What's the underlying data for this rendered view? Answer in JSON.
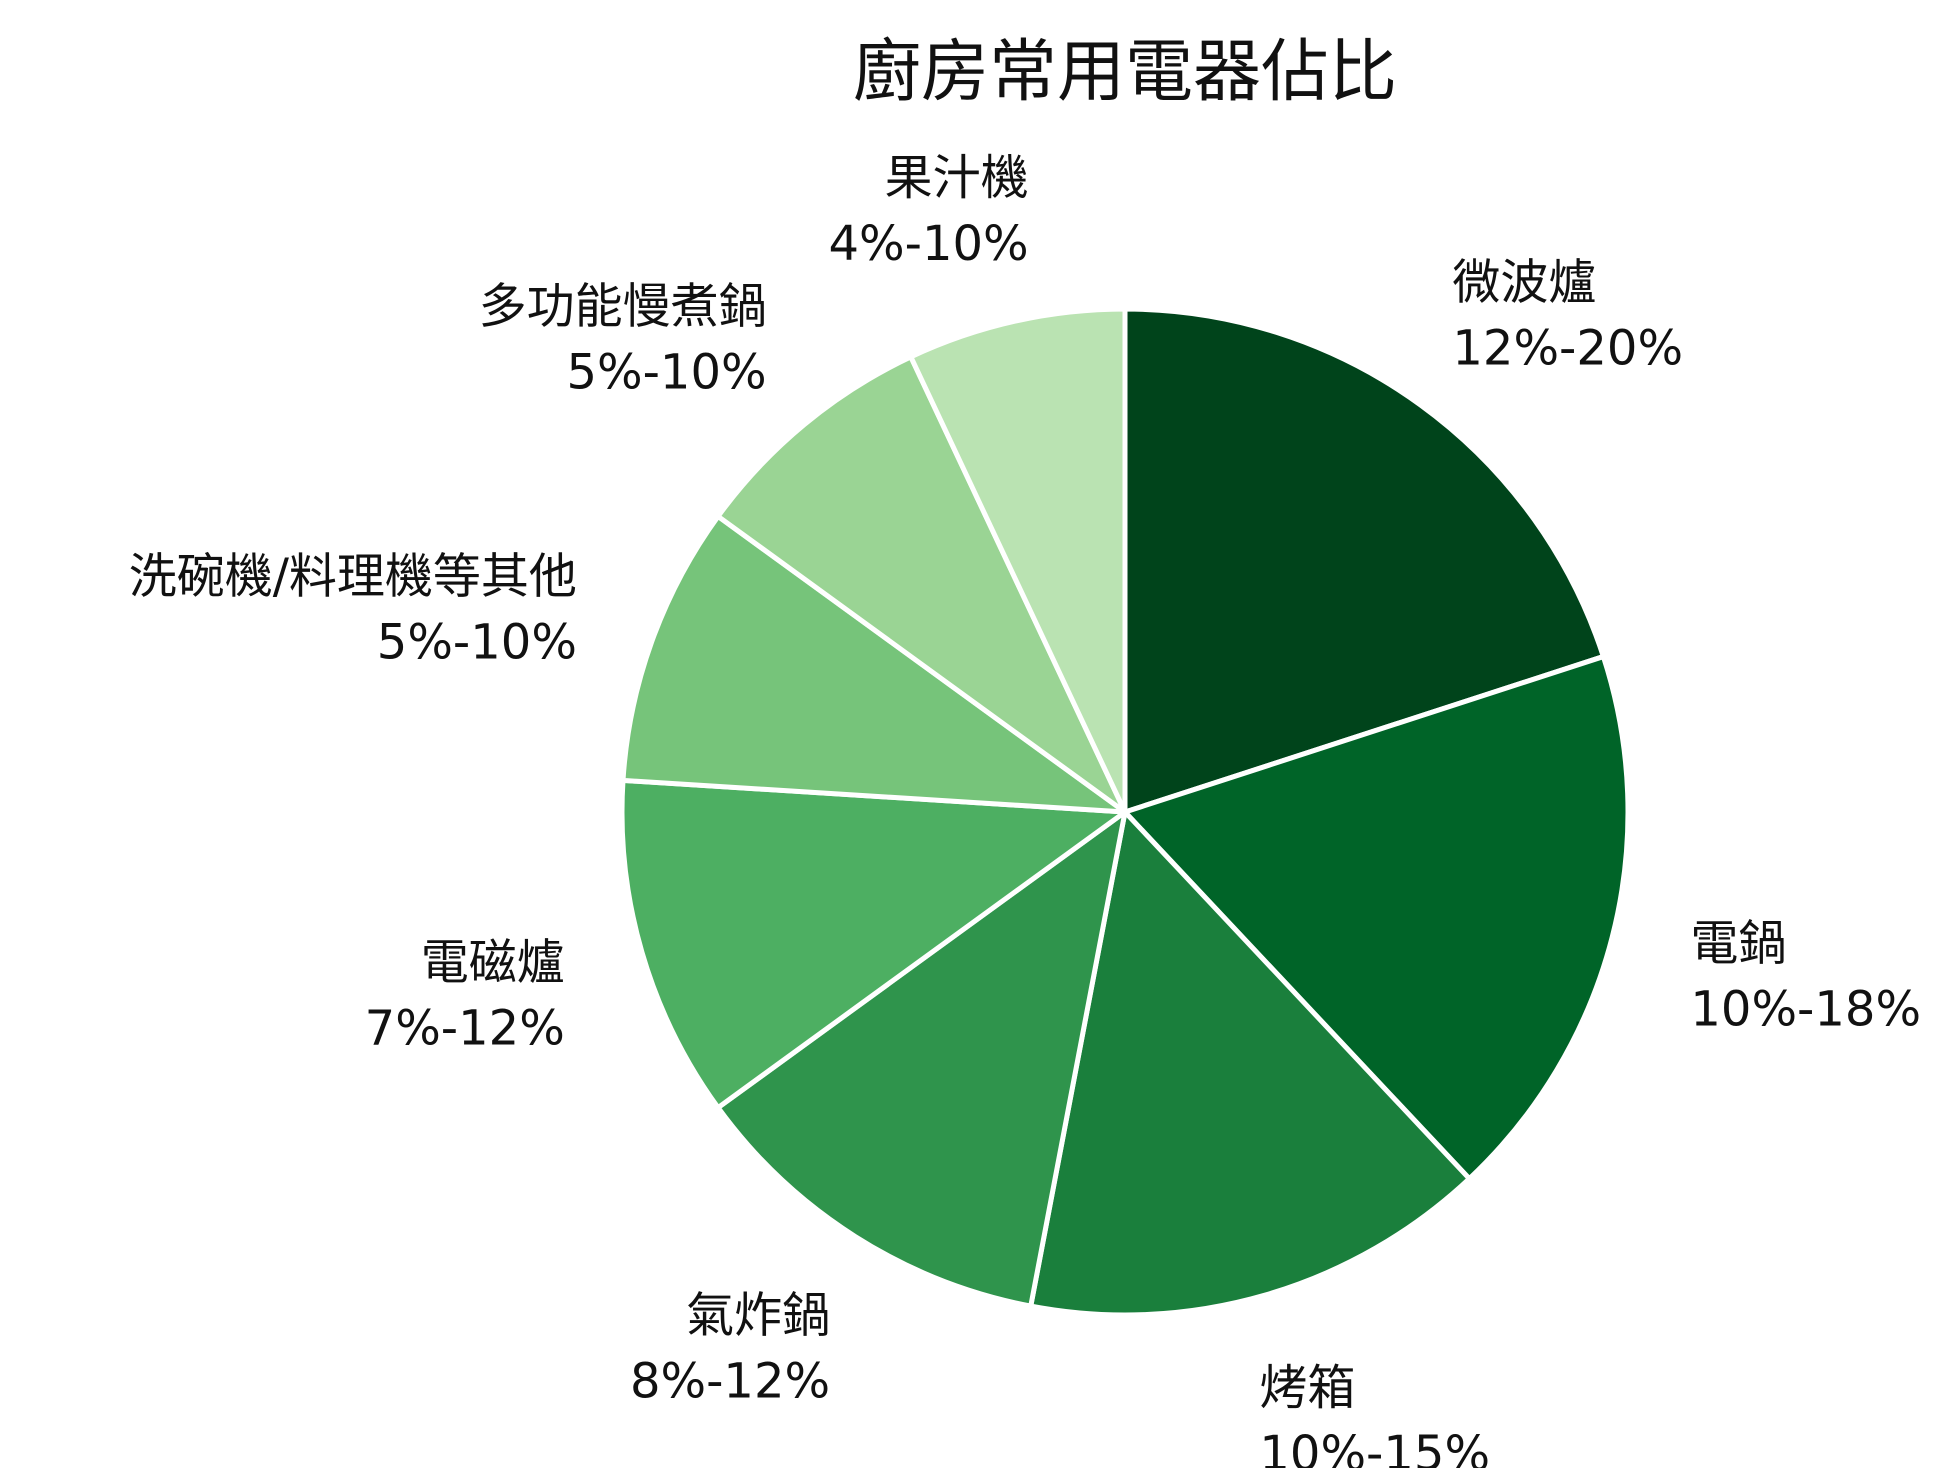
{
  "chart_data": {
    "type": "pie",
    "title": "廚房常用電器佔比",
    "slices": [
      {
        "name": "微波爐",
        "range": "12%-20%",
        "value": 20,
        "color": "#00441b"
      },
      {
        "name": "電鍋",
        "range": "10%-18%",
        "value": 18,
        "color": "#006428"
      },
      {
        "name": "烤箱",
        "range": "10%-15%",
        "value": 15,
        "color": "#1a7f3c"
      },
      {
        "name": "氣炸鍋",
        "range": "8%-12%",
        "value": 12,
        "color": "#2f944c"
      },
      {
        "name": "電磁爐",
        "range": "7%-12%",
        "value": 11,
        "color": "#4daf62"
      },
      {
        "name": "洗碗機/料理機等其他",
        "range": "5%-10%",
        "value": 9,
        "color": "#76c47a"
      },
      {
        "name": "多功能慢煮鍋",
        "range": "5%-10%",
        "value": 8,
        "color": "#9ad494"
      },
      {
        "name": "果汁機",
        "range": "4%-10%",
        "value": 7,
        "color": "#bae3b2"
      }
    ]
  }
}
